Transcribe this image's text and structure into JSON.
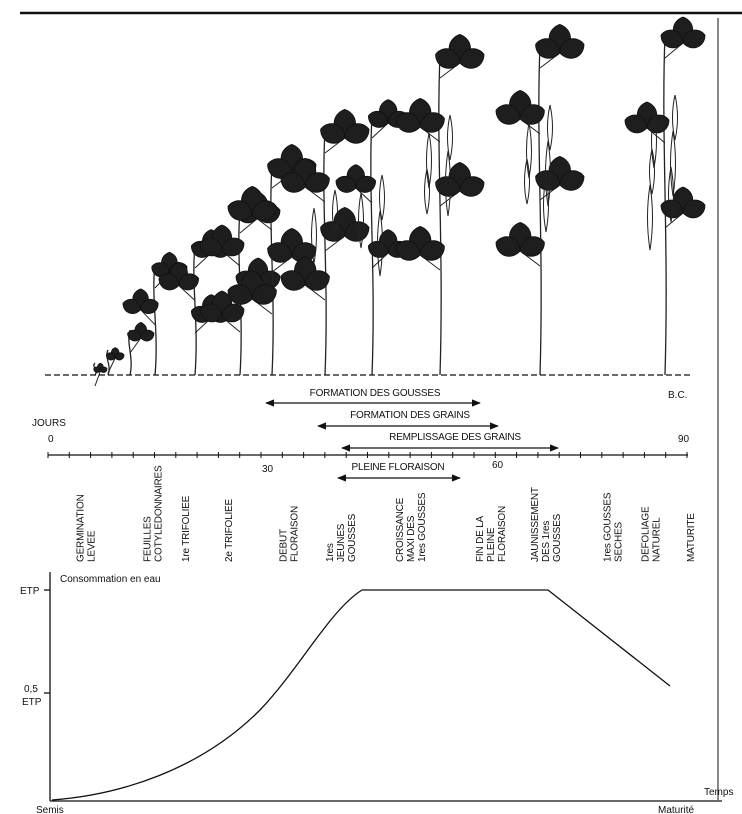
{
  "timeline": {
    "bc": "B.C.",
    "days_label": "JOURS",
    "days": [
      "0",
      "30",
      "60",
      "90"
    ],
    "phases": [
      "FORMATION DES GOUSSES",
      "FORMATION DES GRAINS",
      "REMPLISSAGE DES GRAINS",
      "PLEINE FLORAISON"
    ]
  },
  "stages": [
    {
      "lines": [
        "GERMINATION",
        "LEVEE"
      ]
    },
    {
      "lines": [
        "FEUILLES",
        "COTYLEDONNAIRES"
      ]
    },
    {
      "lines": [
        "1re TRIFOLIEE"
      ]
    },
    {
      "lines": [
        "2e TRIFOLIEE"
      ]
    },
    {
      "lines": [
        "DEBUT",
        "FLORAISON"
      ]
    },
    {
      "lines": [
        "1res",
        "JEUNES",
        "GOUSSES"
      ]
    },
    {
      "lines": [
        "CROISSANCE",
        "MAXI DES",
        "1res GOUSSES"
      ]
    },
    {
      "lines": [
        "FIN DE LA",
        "PLEINE",
        "FLORAISON"
      ]
    },
    {
      "lines": [
        "JAUNISSEMENT",
        "DES 1res",
        "GOUSSES"
      ]
    },
    {
      "lines": [
        "1res GOUSSES",
        "SECHES"
      ]
    },
    {
      "lines": [
        "DEFOLIAGE",
        "NATUREL"
      ]
    },
    {
      "lines": [
        "MATURITE"
      ]
    }
  ],
  "curve": {
    "title": "Consommation en eau",
    "y_top": "ETP",
    "y_half": "0,5",
    "y_half_unit": "ETP",
    "x_label": "Temps",
    "x_start": "Semis",
    "x_end": "Maturité"
  }
}
